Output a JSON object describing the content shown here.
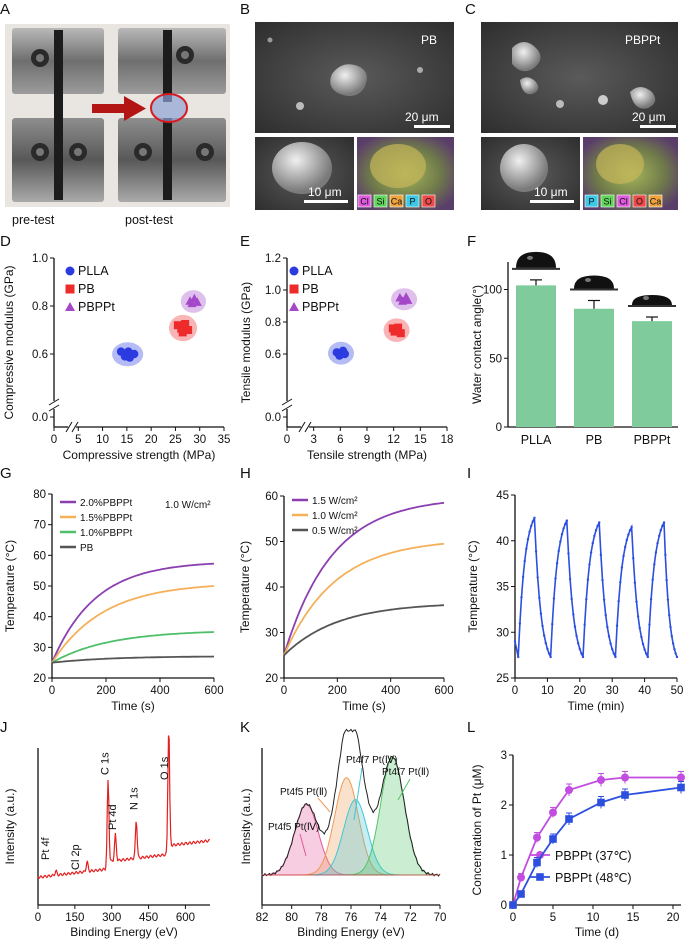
{
  "panels": {
    "A": {
      "label": "A",
      "left_caption": "pre-test",
      "right_caption": "post-test"
    },
    "B": {
      "label": "B",
      "tag": "PB",
      "scale_main": "20 μm",
      "scale_inset": "10 μm",
      "elements": [
        "Cl",
        "Si",
        "Ca",
        "P",
        "O"
      ]
    },
    "C": {
      "label": "C",
      "tag": "PBPPt",
      "scale_main": "20 μm",
      "scale_inset": "10 μm",
      "elements": [
        "P",
        "Si",
        "Cl",
        "O",
        "Ca"
      ]
    },
    "J": {
      "label": "J",
      "peaks": [
        "Pt 4f",
        "Cl 2p",
        "C 1s",
        "Pt 4d",
        "N 1s",
        "O 1s"
      ]
    },
    "K": {
      "label": "K",
      "peak_labels": [
        "Pt4f5 Pt(Ⅱ)",
        "Pt4f7 Pt(Ⅳ)",
        "Pt4f5 Pt(Ⅳ)",
        "Pt4f7 Pt(Ⅱ)"
      ]
    }
  },
  "colors": {
    "plla": "#2b3be0",
    "pb": "#ee2b2b",
    "pbppt": "#a447c9",
    "bar": "#7fcb9c",
    "l37": "#c24de0",
    "l48": "#2c4fe0"
  },
  "chart_data": [
    {
      "id": "D",
      "label": "D",
      "type": "scatter",
      "xlabel": "Compressive strength (MPa)",
      "ylabel": "Compressive modulus (GPa)",
      "xlim": [
        0,
        35
      ],
      "ylim": [
        0,
        1.0
      ],
      "x_ticks": [
        "0",
        "5",
        "10",
        "15",
        "20",
        "25",
        "30",
        "35"
      ],
      "y_ticks": [
        "0.0",
        "0.6",
        "0.8",
        "1.0"
      ],
      "series": [
        {
          "name": "PLLA",
          "points": [
            [
              13.8,
              0.61
            ],
            [
              15.3,
              0.61
            ],
            [
              14.6,
              0.59
            ],
            [
              16.5,
              0.6
            ],
            [
              15.6,
              0.585
            ]
          ]
        },
        {
          "name": "PB",
          "points": [
            [
              25.5,
              0.72
            ],
            [
              27.0,
              0.725
            ],
            [
              26.2,
              0.705
            ],
            [
              27.6,
              0.7
            ],
            [
              26.5,
              0.69
            ]
          ]
        },
        {
          "name": "PBPPt",
          "points": [
            [
              28.0,
              0.82
            ],
            [
              28.9,
              0.83
            ],
            [
              28.4,
              0.81
            ],
            [
              29.5,
              0.815
            ]
          ]
        }
      ]
    },
    {
      "id": "E",
      "label": "E",
      "type": "scatter",
      "xlabel": "Tensile strength (MPa)",
      "ylabel": "Tensile modulus (GPa)",
      "xlim": [
        0,
        18
      ],
      "ylim": [
        0,
        1.2
      ],
      "x_ticks": [
        "0",
        "3",
        "6",
        "9",
        "12",
        "15",
        "18"
      ],
      "y_ticks": [
        "0.0",
        "0.6",
        "0.8",
        "1.0",
        "1.2"
      ],
      "series": [
        {
          "name": "PLLA",
          "points": [
            [
              5.6,
              0.61
            ],
            [
              6.3,
              0.62
            ],
            [
              5.9,
              0.59
            ],
            [
              6.5,
              0.6
            ]
          ]
        },
        {
          "name": "PB",
          "points": [
            [
              11.9,
              0.76
            ],
            [
              12.5,
              0.765
            ],
            [
              12.1,
              0.74
            ],
            [
              12.8,
              0.73
            ]
          ]
        },
        {
          "name": "PBPPt",
          "points": [
            [
              12.7,
              0.95
            ],
            [
              13.4,
              0.955
            ],
            [
              13.0,
              0.93
            ],
            [
              13.6,
              0.935
            ]
          ]
        }
      ]
    },
    {
      "id": "F",
      "label": "F",
      "type": "bar",
      "ylabel": "Water contact angle(°)",
      "categories": [
        "PLLA",
        "PB",
        "PBPPt"
      ],
      "values": [
        103,
        86,
        77
      ],
      "errors": [
        4,
        6,
        3
      ],
      "ylim": [
        0,
        120
      ],
      "y_ticks": [
        "0",
        "50",
        "100"
      ]
    },
    {
      "id": "G",
      "label": "G",
      "type": "line",
      "xlabel": "Time (s)",
      "ylabel": "Temperature (°C)",
      "annotation": "1.0 W/cm²",
      "xlim": [
        0,
        600
      ],
      "ylim": [
        20,
        80
      ],
      "x_ticks": [
        "0",
        "200",
        "400",
        "600"
      ],
      "y_ticks": [
        "20",
        "30",
        "40",
        "50",
        "60",
        "70",
        "80"
      ],
      "series": [
        {
          "name": "2.0%PBPPt",
          "color": "#8b3fb0",
          "start": 25,
          "end": 57.3,
          "tau": 160
        },
        {
          "name": "1.5%PBPPt",
          "color": "#f5b05a",
          "start": 25,
          "end": 50,
          "tau": 190
        },
        {
          "name": "1.0%PBPPt",
          "color": "#4fbf6a",
          "start": 25,
          "end": 35,
          "tau": 210
        },
        {
          "name": "PB",
          "color": "#555555",
          "start": 25,
          "end": 27,
          "tau": 220
        }
      ]
    },
    {
      "id": "H",
      "label": "H",
      "type": "line",
      "xlabel": "Time (s)",
      "ylabel": "Temperature (°C)",
      "xlim": [
        0,
        600
      ],
      "ylim": [
        20,
        60
      ],
      "x_ticks": [
        "0",
        "200",
        "400",
        "600"
      ],
      "y_ticks": [
        "20",
        "30",
        "40",
        "50",
        "60"
      ],
      "series": [
        {
          "name": "1.5 W/cm²",
          "color": "#8b3fb0",
          "start": 25,
          "end": 58.5,
          "tau": 180
        },
        {
          "name": "1.0 W/cm²",
          "color": "#f5b05a",
          "start": 25,
          "end": 49.5,
          "tau": 190
        },
        {
          "name": "0.5 W/cm²",
          "color": "#555555",
          "start": 25,
          "end": 36,
          "tau": 200
        }
      ]
    },
    {
      "id": "I",
      "label": "I",
      "type": "line",
      "xlabel": "Time (min)",
      "ylabel": "Temperature (°C)",
      "xlim": [
        0,
        50
      ],
      "ylim": [
        25,
        45
      ],
      "x_ticks": [
        "0",
        "10",
        "20",
        "30",
        "40",
        "50"
      ],
      "y_ticks": [
        "25",
        "30",
        "35",
        "40",
        "45"
      ],
      "cycles": [
        {
          "t0": 1,
          "tp": 6,
          "te": 11,
          "peak": 42.5
        },
        {
          "t0": 11,
          "tp": 16,
          "te": 21,
          "peak": 42.2
        },
        {
          "t0": 21,
          "tp": 26,
          "te": 31,
          "peak": 42.0
        },
        {
          "t0": 31,
          "tp": 36,
          "te": 41,
          "peak": 41.5
        },
        {
          "t0": 41,
          "tp": 46,
          "te": 50,
          "peak": 42.0
        }
      ],
      "start_temp": 29,
      "min_temp": 27.3
    },
    {
      "id": "J",
      "label": "J",
      "type": "line",
      "xlabel": "Binding Energy (eV)",
      "ylabel": "Intensity (a.u.)",
      "xlim": [
        0,
        700
      ],
      "x_ticks": [
        "0",
        "150",
        "300",
        "450",
        "600"
      ]
    },
    {
      "id": "K",
      "label": "K",
      "type": "line",
      "xlabel": "Binding Energy (eV)",
      "ylabel": "Intensity (a.u.)",
      "xlim": [
        82,
        70
      ],
      "x_ticks": [
        "82",
        "80",
        "78",
        "76",
        "74",
        "72",
        "70"
      ],
      "components": [
        {
          "center": 79.0,
          "height": 0.45,
          "color": "#e05a9a"
        },
        {
          "center": 76.3,
          "height": 0.62,
          "color": "#f09a55"
        },
        {
          "center": 75.7,
          "height": 0.48,
          "color": "#3fc7d8"
        },
        {
          "center": 73.2,
          "height": 0.75,
          "color": "#52c56a"
        }
      ]
    },
    {
      "id": "L",
      "label": "L",
      "type": "line",
      "xlabel": "Time (d)",
      "ylabel": "Concentration of Pt  (μM)",
      "xlim": [
        0,
        21
      ],
      "ylim": [
        0,
        3
      ],
      "x_ticks": [
        "0",
        "5",
        "10",
        "15",
        "20"
      ],
      "y_ticks": [
        "0",
        "1",
        "2",
        "3"
      ],
      "series": [
        {
          "name": "PBPPt (37℃)",
          "color": "#c24de0",
          "x": [
            0,
            1,
            3,
            5,
            7,
            11,
            14,
            21
          ],
          "y": [
            0,
            0.55,
            1.35,
            1.85,
            2.3,
            2.5,
            2.55,
            2.55
          ],
          "err": [
            0,
            0.08,
            0.1,
            0.1,
            0.12,
            0.13,
            0.12,
            0.12
          ]
        },
        {
          "name": "PBPPt (48℃)",
          "color": "#2c4fe0",
          "x": [
            0,
            1,
            3,
            5,
            7,
            11,
            14,
            21
          ],
          "y": [
            0,
            0.22,
            0.85,
            1.32,
            1.72,
            2.05,
            2.2,
            2.35
          ],
          "err": [
            0,
            0.06,
            0.1,
            0.1,
            0.12,
            0.12,
            0.12,
            0.12
          ]
        }
      ]
    }
  ]
}
